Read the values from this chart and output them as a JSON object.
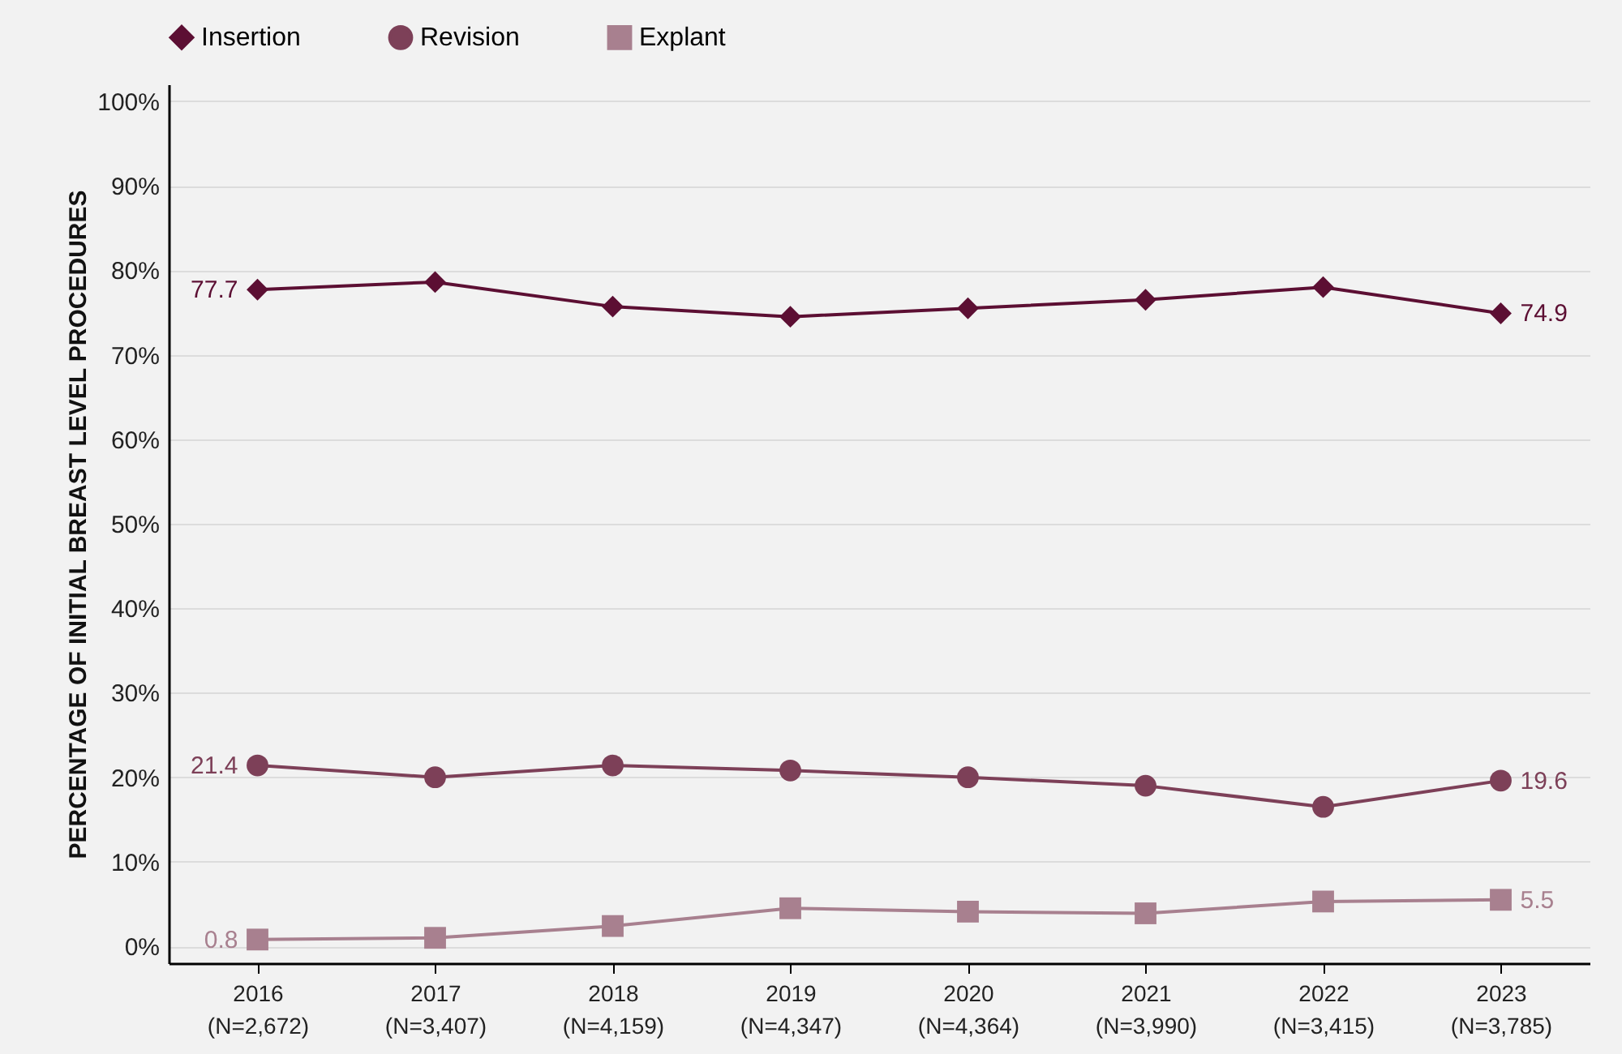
{
  "chart_data": {
    "type": "line",
    "ylabel": "PERCENTAGE OF INITIAL BREAST LEVEL PROCEDURES",
    "categories": [
      "2016\n(N=2,672)",
      "2017\n(N=3,407)",
      "2018\n(N=4,159)",
      "2019\n(N=4,347)",
      "2020\n(N=4,364)",
      "2021\n(N=3,990)",
      "2022\n(N=3,415)",
      "2023\n(N=3,785)"
    ],
    "series": [
      {
        "name": "Insertion",
        "color": "#5c0f33",
        "marker": "diamond",
        "values": [
          77.7,
          78.6,
          75.7,
          74.5,
          75.5,
          76.5,
          78.0,
          74.9
        ],
        "value_labels": [
          "77.7",
          null,
          null,
          null,
          null,
          null,
          null,
          "74.9"
        ]
      },
      {
        "name": "Revision",
        "color": "#7d4058",
        "marker": "circle",
        "values": [
          21.4,
          20.0,
          21.4,
          20.8,
          20.0,
          19.0,
          16.5,
          19.6
        ],
        "value_labels": [
          "21.4",
          null,
          null,
          null,
          null,
          null,
          null,
          "19.6"
        ]
      },
      {
        "name": "Explant",
        "color": "#a8808f",
        "marker": "square",
        "values": [
          0.8,
          1.0,
          2.4,
          4.5,
          4.1,
          3.9,
          5.3,
          5.5
        ],
        "value_labels": [
          "0.8",
          null,
          null,
          null,
          null,
          null,
          null,
          "5.5"
        ]
      }
    ],
    "ylim": [
      -2,
      102
    ],
    "yticks": [
      {
        "value": 0,
        "label": "0%"
      },
      {
        "value": 10,
        "label": "10%"
      },
      {
        "value": 20,
        "label": "20%"
      },
      {
        "value": 30,
        "label": "30%"
      },
      {
        "value": 40,
        "label": "40%"
      },
      {
        "value": 50,
        "label": "50%"
      },
      {
        "value": 60,
        "label": "60%"
      },
      {
        "value": 70,
        "label": "70%"
      },
      {
        "value": 80,
        "label": "80%"
      },
      {
        "value": 90,
        "label": "90%"
      },
      {
        "value": 100,
        "label": "100%"
      }
    ],
    "grid": "y",
    "legend": "top",
    "line_style": "solid"
  }
}
